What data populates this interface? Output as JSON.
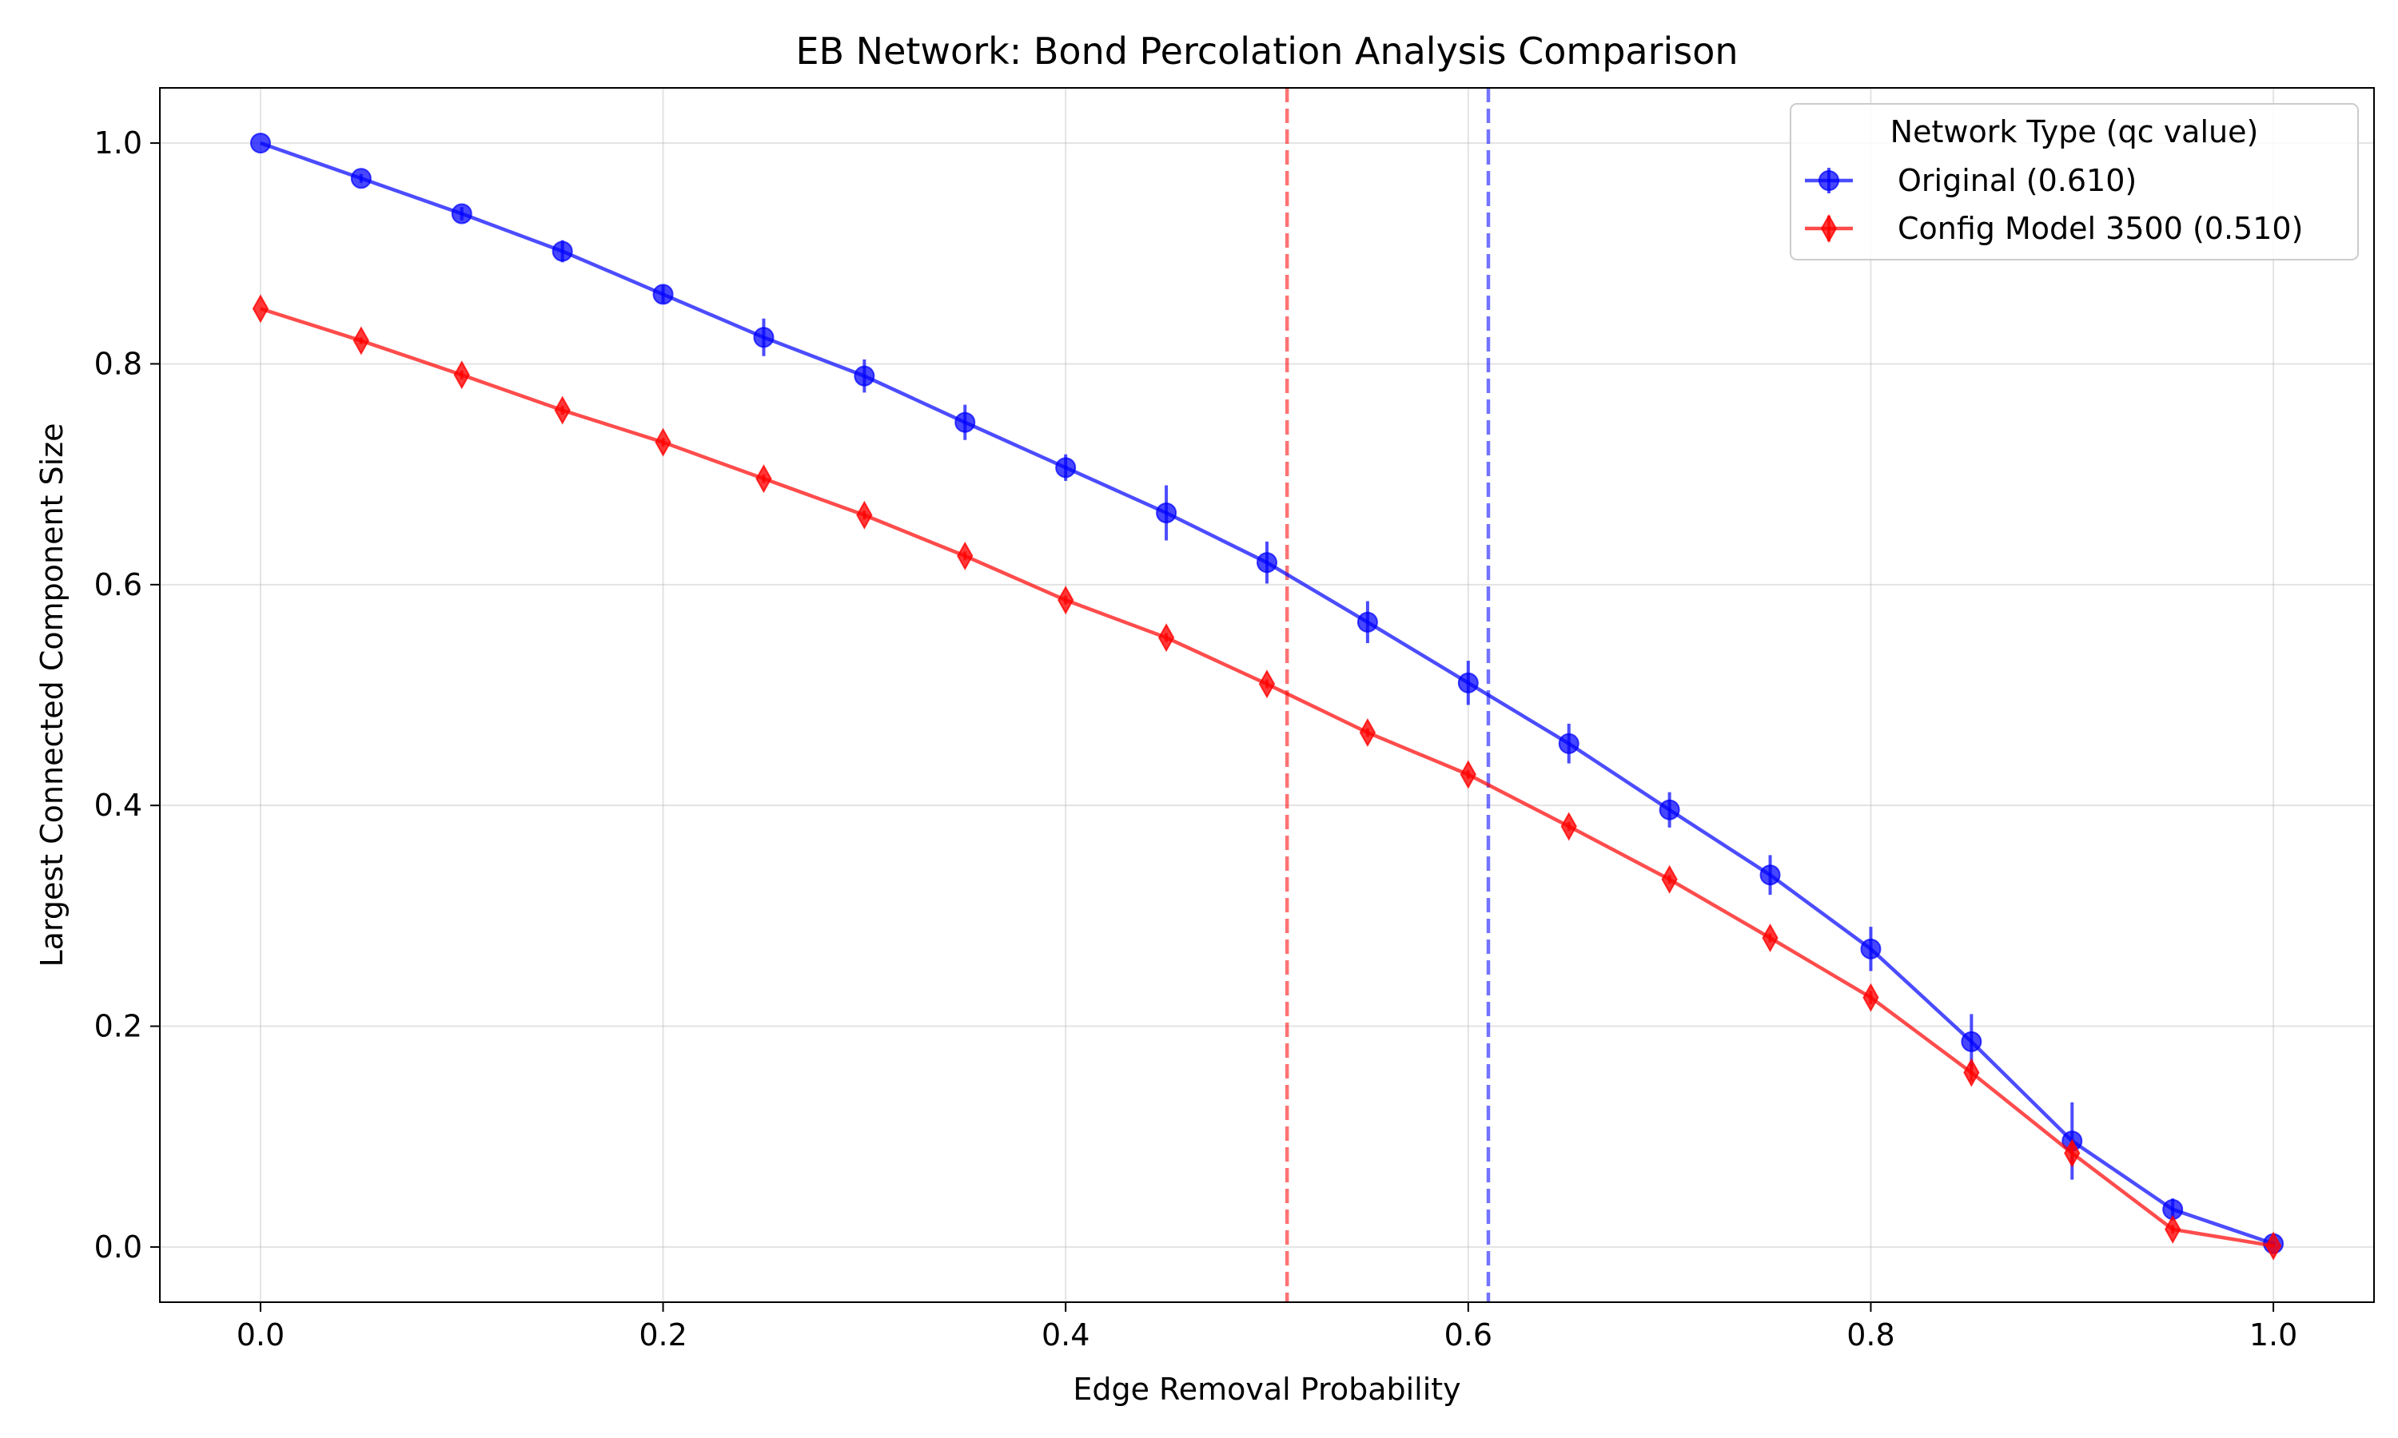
{
  "chart_data": {
    "type": "line",
    "title": "EB Network: Bond Percolation Analysis Comparison",
    "xlabel": "Edge Removal Probability",
    "ylabel": "Largest Connected Component Size",
    "xlim": [
      -0.05,
      1.05
    ],
    "ylim": [
      -0.05,
      1.05
    ],
    "xticks": [
      0.0,
      0.2,
      0.4,
      0.6,
      0.8,
      1.0
    ],
    "xtick_labels": [
      "0.0",
      "0.2",
      "0.4",
      "0.6",
      "0.8",
      "1.0"
    ],
    "yticks": [
      0.0,
      0.2,
      0.4,
      0.6,
      0.8,
      1.0
    ],
    "ytick_labels": [
      "0.0",
      "0.2",
      "0.4",
      "0.6",
      "0.8",
      "1.0"
    ],
    "grid": true,
    "legend": {
      "title": "Network Type (qc value)",
      "placement": "top-right"
    },
    "x": [
      0.0,
      0.05,
      0.1,
      0.15,
      0.2,
      0.25,
      0.3,
      0.35,
      0.4,
      0.45,
      0.5,
      0.55,
      0.6,
      0.65,
      0.7,
      0.75,
      0.8,
      0.85,
      0.9,
      0.95,
      1.0
    ],
    "series": [
      {
        "name": "Original (0.610)",
        "color": "#0000ff",
        "marker": "circle",
        "values": [
          1.0,
          0.968,
          0.936,
          0.902,
          0.863,
          0.824,
          0.789,
          0.747,
          0.706,
          0.665,
          0.62,
          0.566,
          0.511,
          0.456,
          0.396,
          0.337,
          0.27,
          0.186,
          0.096,
          0.034,
          0.003
        ],
        "errors": [
          0.0,
          0.004,
          0.006,
          0.01,
          0.008,
          0.017,
          0.015,
          0.016,
          0.012,
          0.025,
          0.019,
          0.019,
          0.02,
          0.018,
          0.016,
          0.018,
          0.02,
          0.025,
          0.035,
          0.01,
          0.002
        ]
      },
      {
        "name": "Config Model 3500 (0.510)",
        "color": "#ff0000",
        "marker": "thin_diamond",
        "values": [
          0.85,
          0.821,
          0.79,
          0.758,
          0.729,
          0.696,
          0.663,
          0.626,
          0.586,
          0.552,
          0.51,
          0.466,
          0.428,
          0.381,
          0.333,
          0.28,
          0.226,
          0.158,
          0.085,
          0.016,
          0.001
        ],
        "errors": [
          0.0,
          0.003,
          0.004,
          0.004,
          0.004,
          0.004,
          0.004,
          0.004,
          0.004,
          0.004,
          0.004,
          0.004,
          0.004,
          0.004,
          0.004,
          0.004,
          0.006,
          0.008,
          0.01,
          0.004,
          0.001
        ]
      }
    ],
    "vlines": [
      {
        "x": 0.51,
        "color": "#ff0000",
        "style": "dashed"
      },
      {
        "x": 0.61,
        "color": "#0000ff",
        "style": "dashed"
      }
    ]
  }
}
